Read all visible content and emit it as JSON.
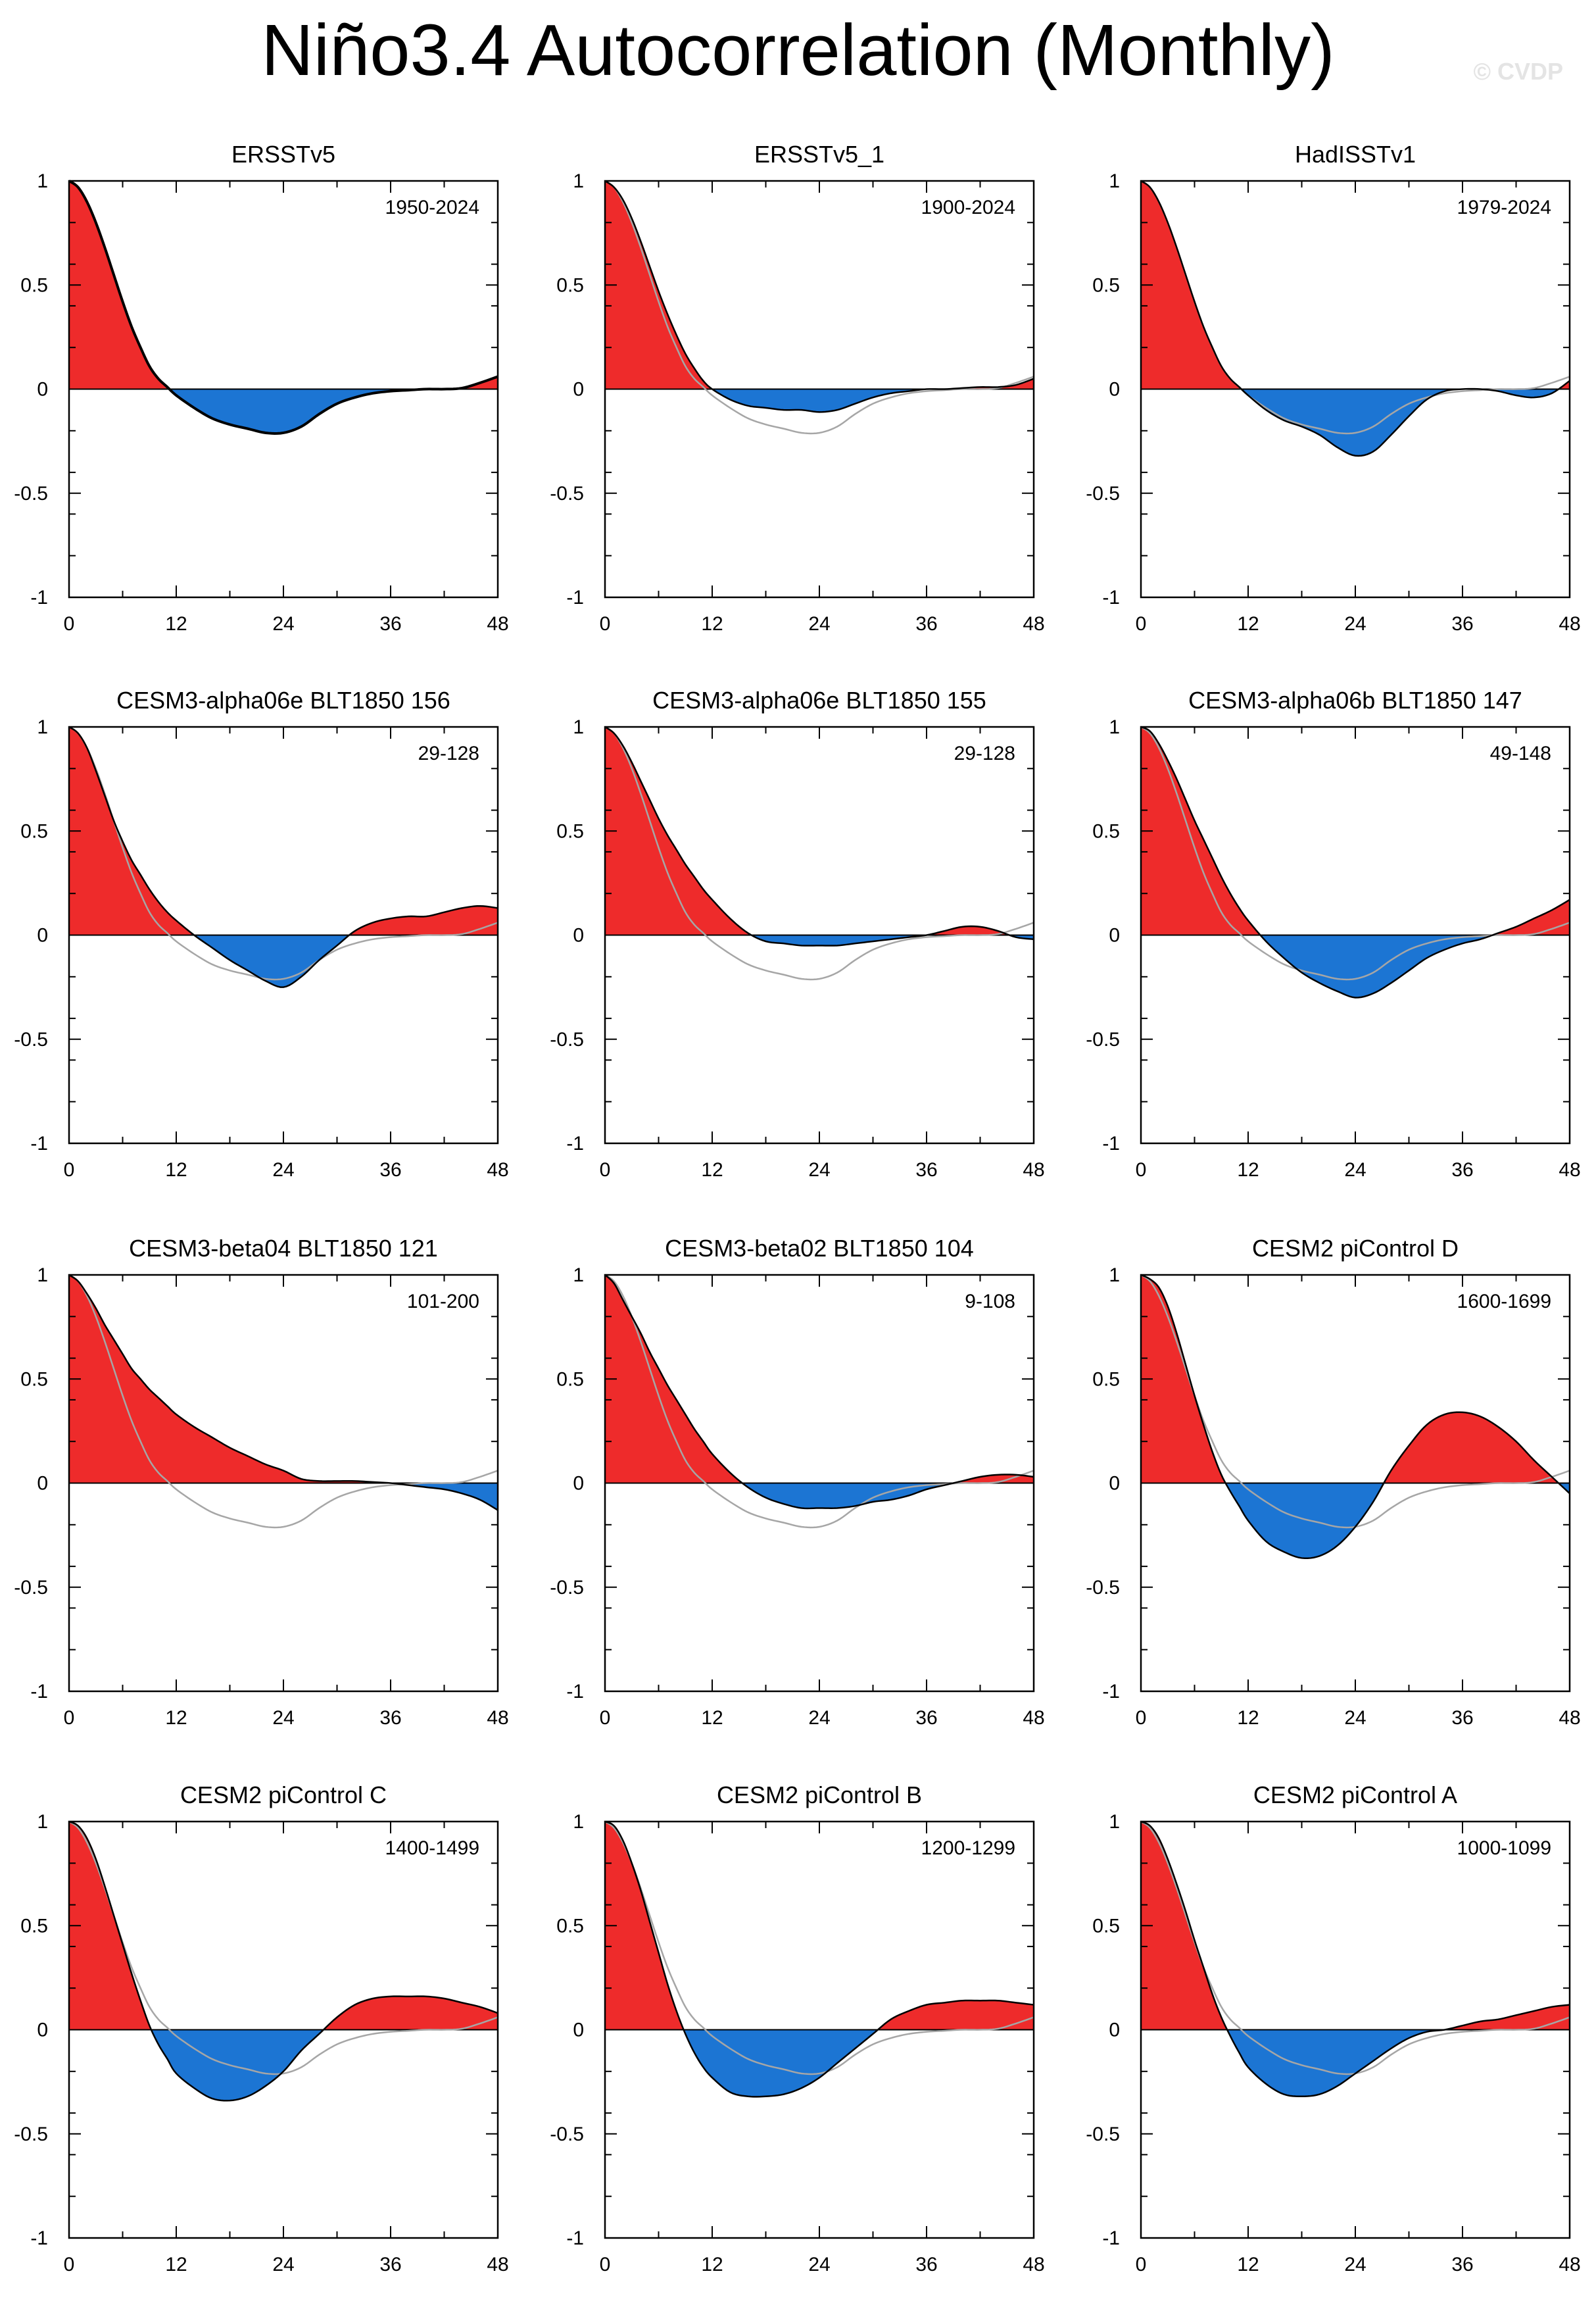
{
  "title": "Niño3.4 Autocorrelation (Monthly)",
  "watermark": "© CVDP",
  "colors": {
    "positive": "#ee2b2b",
    "negative": "#1c75d3",
    "reference": "#a6a6a6",
    "curve": "#000000",
    "axis": "#000000"
  },
  "chart_data": [
    {
      "type": "area",
      "title": "ERSSTv5",
      "period": "1950-2024",
      "x": [
        0,
        1,
        2,
        3,
        4,
        5,
        6,
        7,
        8,
        9,
        10,
        11,
        12,
        14,
        16,
        18,
        20,
        22,
        24,
        26,
        28,
        30,
        32,
        34,
        36,
        38,
        40,
        42,
        44,
        46,
        48
      ],
      "values": [
        1.0,
        0.97,
        0.9,
        0.8,
        0.68,
        0.55,
        0.42,
        0.3,
        0.2,
        0.11,
        0.05,
        0.01,
        -0.03,
        -0.09,
        -0.14,
        -0.17,
        -0.19,
        -0.21,
        -0.21,
        -0.18,
        -0.12,
        -0.07,
        -0.04,
        -0.02,
        -0.01,
        -0.005,
        0.0,
        0.0,
        0.005,
        0.03,
        0.06
      ],
      "xticks": [
        0,
        12,
        24,
        36,
        48
      ],
      "yticks": [
        1,
        0.5,
        0,
        -0.5,
        -1
      ],
      "xlim": [
        0,
        48
      ],
      "ylim": [
        -1,
        1
      ]
    },
    {
      "type": "area",
      "title": "ERSSTv5_1",
      "period": "1900-2024",
      "x": [
        0,
        1,
        2,
        3,
        4,
        5,
        6,
        7,
        8,
        9,
        10,
        11,
        12,
        14,
        16,
        18,
        20,
        22,
        24,
        26,
        28,
        30,
        32,
        34,
        36,
        38,
        40,
        42,
        44,
        46,
        48
      ],
      "values": [
        1.0,
        0.97,
        0.91,
        0.82,
        0.71,
        0.59,
        0.47,
        0.36,
        0.26,
        0.17,
        0.1,
        0.04,
        0.0,
        -0.05,
        -0.08,
        -0.09,
        -0.1,
        -0.1,
        -0.11,
        -0.1,
        -0.07,
        -0.04,
        -0.02,
        -0.01,
        0.0,
        0.0,
        0.005,
        0.01,
        0.01,
        0.02,
        0.05
      ],
      "xticks": [
        0,
        12,
        24,
        36,
        48
      ],
      "yticks": [
        1,
        0.5,
        0,
        -0.5,
        -1
      ],
      "xlim": [
        0,
        48
      ],
      "ylim": [
        -1,
        1
      ]
    },
    {
      "type": "area",
      "title": "HadISSTv1",
      "period": "1979-2024",
      "x": [
        0,
        1,
        2,
        3,
        4,
        5,
        6,
        7,
        8,
        9,
        10,
        11,
        12,
        14,
        16,
        18,
        20,
        22,
        24,
        26,
        28,
        30,
        32,
        34,
        36,
        38,
        40,
        42,
        44,
        46,
        48
      ],
      "values": [
        1.0,
        0.97,
        0.9,
        0.8,
        0.68,
        0.55,
        0.42,
        0.3,
        0.2,
        0.11,
        0.05,
        0.01,
        -0.03,
        -0.1,
        -0.15,
        -0.18,
        -0.22,
        -0.28,
        -0.32,
        -0.3,
        -0.22,
        -0.13,
        -0.05,
        -0.01,
        0.0,
        0.0,
        -0.01,
        -0.03,
        -0.04,
        -0.02,
        0.04
      ],
      "xticks": [
        0,
        12,
        24,
        36,
        48
      ],
      "yticks": [
        1,
        0.5,
        0,
        -0.5,
        -1
      ],
      "xlim": [
        0,
        48
      ],
      "ylim": [
        -1,
        1
      ]
    },
    {
      "type": "area",
      "title": "CESM3-alpha06e BLT1850 156",
      "period": "29-128",
      "x": [
        0,
        1,
        2,
        3,
        4,
        5,
        6,
        7,
        8,
        9,
        10,
        11,
        12,
        14,
        16,
        18,
        20,
        22,
        24,
        26,
        28,
        30,
        32,
        34,
        36,
        38,
        40,
        42,
        44,
        46,
        48
      ],
      "values": [
        1.0,
        0.97,
        0.9,
        0.79,
        0.67,
        0.55,
        0.45,
        0.36,
        0.29,
        0.22,
        0.16,
        0.11,
        0.07,
        0.0,
        -0.06,
        -0.12,
        -0.17,
        -0.22,
        -0.25,
        -0.2,
        -0.12,
        -0.05,
        0.02,
        0.06,
        0.08,
        0.09,
        0.09,
        0.11,
        0.13,
        0.14,
        0.13
      ],
      "xticks": [
        0,
        12,
        24,
        36,
        48
      ],
      "yticks": [
        1,
        0.5,
        0,
        -0.5,
        -1
      ],
      "xlim": [
        0,
        48
      ],
      "ylim": [
        -1,
        1
      ]
    },
    {
      "type": "area",
      "title": "CESM3-alpha06e BLT1850 155",
      "period": "29-128",
      "x": [
        0,
        1,
        2,
        3,
        4,
        5,
        6,
        7,
        8,
        9,
        10,
        11,
        12,
        14,
        16,
        18,
        20,
        22,
        24,
        26,
        28,
        30,
        32,
        34,
        36,
        38,
        40,
        42,
        44,
        46,
        48
      ],
      "values": [
        1.0,
        0.97,
        0.91,
        0.83,
        0.74,
        0.65,
        0.56,
        0.48,
        0.41,
        0.34,
        0.28,
        0.22,
        0.17,
        0.08,
        0.01,
        -0.03,
        -0.04,
        -0.05,
        -0.05,
        -0.05,
        -0.04,
        -0.03,
        -0.02,
        -0.01,
        0.0,
        0.02,
        0.04,
        0.04,
        0.02,
        -0.01,
        -0.02
      ],
      "xticks": [
        0,
        12,
        24,
        36,
        48
      ],
      "yticks": [
        1,
        0.5,
        0,
        -0.5,
        -1
      ],
      "xlim": [
        0,
        48
      ],
      "ylim": [
        -1,
        1
      ]
    },
    {
      "type": "area",
      "title": "CESM3-alpha06b BLT1850 147",
      "period": "49-148",
      "x": [
        0,
        1,
        2,
        3,
        4,
        5,
        6,
        7,
        8,
        9,
        10,
        11,
        12,
        14,
        16,
        18,
        20,
        22,
        24,
        26,
        28,
        30,
        32,
        34,
        36,
        38,
        40,
        42,
        44,
        46,
        48
      ],
      "values": [
        1.0,
        0.98,
        0.92,
        0.84,
        0.75,
        0.65,
        0.55,
        0.46,
        0.37,
        0.28,
        0.2,
        0.13,
        0.07,
        -0.03,
        -0.11,
        -0.18,
        -0.23,
        -0.27,
        -0.3,
        -0.28,
        -0.23,
        -0.17,
        -0.11,
        -0.07,
        -0.04,
        -0.02,
        0.01,
        0.04,
        0.08,
        0.12,
        0.17
      ],
      "xticks": [
        0,
        12,
        24,
        36,
        48
      ],
      "yticks": [
        1,
        0.5,
        0,
        -0.5,
        -1
      ],
      "xlim": [
        0,
        48
      ],
      "ylim": [
        -1,
        1
      ]
    },
    {
      "type": "area",
      "title": "CESM3-beta04 BLT1850 121",
      "period": "101-200",
      "x": [
        0,
        1,
        2,
        3,
        4,
        5,
        6,
        7,
        8,
        9,
        10,
        11,
        12,
        14,
        16,
        18,
        20,
        22,
        24,
        26,
        28,
        30,
        32,
        34,
        36,
        38,
        40,
        42,
        44,
        46,
        48
      ],
      "values": [
        1.0,
        0.97,
        0.91,
        0.84,
        0.76,
        0.69,
        0.62,
        0.55,
        0.5,
        0.45,
        0.41,
        0.37,
        0.33,
        0.27,
        0.22,
        0.17,
        0.13,
        0.09,
        0.06,
        0.02,
        0.01,
        0.01,
        0.01,
        0.005,
        0.0,
        -0.01,
        -0.02,
        -0.03,
        -0.05,
        -0.08,
        -0.13
      ],
      "xticks": [
        0,
        12,
        24,
        36,
        48
      ],
      "yticks": [
        1,
        0.5,
        0,
        -0.5,
        -1
      ],
      "xlim": [
        0,
        48
      ],
      "ylim": [
        -1,
        1
      ]
    },
    {
      "type": "area",
      "title": "CESM3-beta02 BLT1850 104",
      "period": "9-108",
      "x": [
        0,
        1,
        2,
        3,
        4,
        5,
        6,
        7,
        8,
        9,
        10,
        11,
        12,
        14,
        16,
        18,
        20,
        22,
        24,
        26,
        28,
        30,
        32,
        34,
        36,
        38,
        40,
        42,
        44,
        46,
        48
      ],
      "values": [
        1.0,
        0.96,
        0.88,
        0.8,
        0.72,
        0.63,
        0.55,
        0.47,
        0.4,
        0.33,
        0.26,
        0.2,
        0.14,
        0.05,
        -0.02,
        -0.07,
        -0.1,
        -0.12,
        -0.12,
        -0.12,
        -0.11,
        -0.09,
        -0.08,
        -0.06,
        -0.03,
        -0.01,
        0.01,
        0.03,
        0.04,
        0.04,
        0.03
      ],
      "xticks": [
        0,
        12,
        24,
        36,
        48
      ],
      "yticks": [
        1,
        0.5,
        0,
        -0.5,
        -1
      ],
      "xlim": [
        0,
        48
      ],
      "ylim": [
        -1,
        1
      ]
    },
    {
      "type": "area",
      "title": "CESM2 piControl D",
      "period": "1600-1699",
      "x": [
        0,
        1,
        2,
        3,
        4,
        5,
        6,
        7,
        8,
        9,
        10,
        11,
        12,
        14,
        16,
        18,
        20,
        22,
        24,
        26,
        28,
        30,
        32,
        34,
        36,
        38,
        40,
        42,
        44,
        46,
        48
      ],
      "values": [
        1.0,
        0.98,
        0.94,
        0.85,
        0.72,
        0.57,
        0.42,
        0.28,
        0.15,
        0.04,
        -0.04,
        -0.11,
        -0.18,
        -0.28,
        -0.33,
        -0.36,
        -0.35,
        -0.3,
        -0.21,
        -0.09,
        0.06,
        0.18,
        0.28,
        0.33,
        0.34,
        0.32,
        0.27,
        0.2,
        0.11,
        0.03,
        -0.05
      ],
      "xticks": [
        0,
        12,
        24,
        36,
        48
      ],
      "yticks": [
        1,
        0.5,
        0,
        -0.5,
        -1
      ],
      "xlim": [
        0,
        48
      ],
      "ylim": [
        -1,
        1
      ]
    },
    {
      "type": "area",
      "title": "CESM2 piControl C",
      "period": "1400-1499",
      "x": [
        0,
        1,
        2,
        3,
        4,
        5,
        6,
        7,
        8,
        9,
        10,
        11,
        12,
        14,
        16,
        18,
        20,
        22,
        24,
        26,
        28,
        30,
        32,
        34,
        36,
        38,
        40,
        42,
        44,
        46,
        48
      ],
      "values": [
        1.0,
        0.98,
        0.92,
        0.82,
        0.69,
        0.55,
        0.41,
        0.27,
        0.14,
        0.02,
        -0.07,
        -0.14,
        -0.21,
        -0.28,
        -0.33,
        -0.34,
        -0.32,
        -0.27,
        -0.2,
        -0.1,
        -0.02,
        0.06,
        0.12,
        0.15,
        0.16,
        0.16,
        0.16,
        0.15,
        0.13,
        0.11,
        0.08
      ],
      "xticks": [
        0,
        12,
        24,
        36,
        48
      ],
      "yticks": [
        1,
        0.5,
        0,
        -0.5,
        -1
      ],
      "xlim": [
        0,
        48
      ],
      "ylim": [
        -1,
        1
      ]
    },
    {
      "type": "area",
      "title": "CESM2 piControl B",
      "period": "1200-1299",
      "x": [
        0,
        1,
        2,
        3,
        4,
        5,
        6,
        7,
        8,
        9,
        10,
        11,
        12,
        14,
        16,
        18,
        20,
        22,
        24,
        26,
        28,
        30,
        32,
        34,
        36,
        38,
        40,
        42,
        44,
        46,
        48
      ],
      "values": [
        1.0,
        0.98,
        0.91,
        0.8,
        0.67,
        0.52,
        0.37,
        0.22,
        0.09,
        -0.02,
        -0.11,
        -0.18,
        -0.23,
        -0.3,
        -0.32,
        -0.32,
        -0.31,
        -0.28,
        -0.23,
        -0.16,
        -0.09,
        -0.02,
        0.05,
        0.09,
        0.12,
        0.13,
        0.14,
        0.14,
        0.14,
        0.13,
        0.12
      ],
      "xticks": [
        0,
        12,
        24,
        36,
        48
      ],
      "yticks": [
        1,
        0.5,
        0,
        -0.5,
        -1
      ],
      "xlim": [
        0,
        48
      ],
      "ylim": [
        -1,
        1
      ]
    },
    {
      "type": "area",
      "title": "CESM2 piControl A",
      "period": "1000-1099",
      "x": [
        0,
        1,
        2,
        3,
        4,
        5,
        6,
        7,
        8,
        9,
        10,
        11,
        12,
        14,
        16,
        18,
        20,
        22,
        24,
        26,
        28,
        30,
        32,
        34,
        36,
        38,
        40,
        42,
        44,
        46,
        48
      ],
      "values": [
        1.0,
        0.98,
        0.92,
        0.82,
        0.7,
        0.57,
        0.43,
        0.3,
        0.17,
        0.06,
        -0.03,
        -0.11,
        -0.18,
        -0.26,
        -0.31,
        -0.32,
        -0.31,
        -0.27,
        -0.21,
        -0.15,
        -0.09,
        -0.04,
        -0.01,
        0.0,
        0.02,
        0.04,
        0.05,
        0.07,
        0.09,
        0.11,
        0.12
      ],
      "xticks": [
        0,
        12,
        24,
        36,
        48
      ],
      "yticks": [
        1,
        0.5,
        0,
        -0.5,
        -1
      ],
      "xlim": [
        0,
        48
      ],
      "ylim": [
        -1,
        1
      ]
    }
  ],
  "reference_series": {
    "name": "ERSSTv5",
    "x": [
      0,
      1,
      2,
      3,
      4,
      5,
      6,
      7,
      8,
      9,
      10,
      11,
      12,
      14,
      16,
      18,
      20,
      22,
      24,
      26,
      28,
      30,
      32,
      34,
      36,
      38,
      40,
      42,
      44,
      46,
      48
    ],
    "values": [
      1.0,
      0.97,
      0.9,
      0.8,
      0.68,
      0.55,
      0.42,
      0.3,
      0.2,
      0.11,
      0.05,
      0.01,
      -0.03,
      -0.09,
      -0.14,
      -0.17,
      -0.19,
      -0.21,
      -0.21,
      -0.18,
      -0.12,
      -0.07,
      -0.04,
      -0.02,
      -0.01,
      -0.005,
      0.0,
      0.0,
      0.005,
      0.03,
      0.06
    ]
  }
}
